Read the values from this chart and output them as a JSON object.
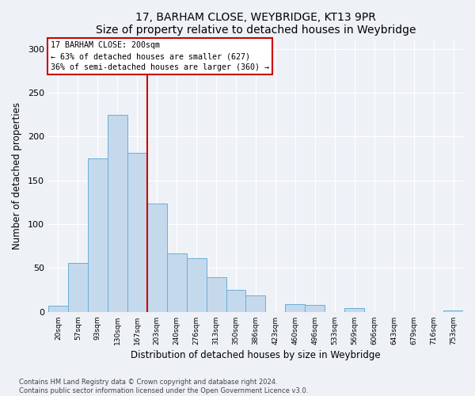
{
  "title": "17, BARHAM CLOSE, WEYBRIDGE, KT13 9PR",
  "subtitle": "Size of property relative to detached houses in Weybridge",
  "xlabel": "Distribution of detached houses by size in Weybridge",
  "ylabel": "Number of detached properties",
  "bin_labels": [
    "20sqm",
    "57sqm",
    "93sqm",
    "130sqm",
    "167sqm",
    "203sqm",
    "240sqm",
    "276sqm",
    "313sqm",
    "350sqm",
    "386sqm",
    "423sqm",
    "460sqm",
    "496sqm",
    "533sqm",
    "569sqm",
    "606sqm",
    "643sqm",
    "679sqm",
    "716sqm",
    "753sqm"
  ],
  "bar_values": [
    7,
    56,
    175,
    225,
    181,
    124,
    67,
    61,
    40,
    25,
    19,
    0,
    9,
    8,
    0,
    4,
    0,
    0,
    0,
    0,
    2
  ],
  "bar_color": "#c5d9ed",
  "bar_edge_color": "#6aaed6",
  "vline_x_index": 4.5,
  "vline_color": "#cc0000",
  "annotation_line1": "17 BARHAM CLOSE: 200sqm",
  "annotation_line2": "← 63% of detached houses are smaller (627)",
  "annotation_line3": "36% of semi-detached houses are larger (360) →",
  "annotation_box_color": "#cc0000",
  "ylim": [
    0,
    310
  ],
  "yticks": [
    0,
    50,
    100,
    150,
    200,
    250,
    300
  ],
  "footer_line1": "Contains HM Land Registry data © Crown copyright and database right 2024.",
  "footer_line2": "Contains public sector information licensed under the Open Government Licence v3.0.",
  "background_color": "#eef2f7",
  "plot_bg_color": "#eef2f7",
  "grid_color": "#ffffff",
  "title_fontsize": 10,
  "subtitle_fontsize": 9
}
